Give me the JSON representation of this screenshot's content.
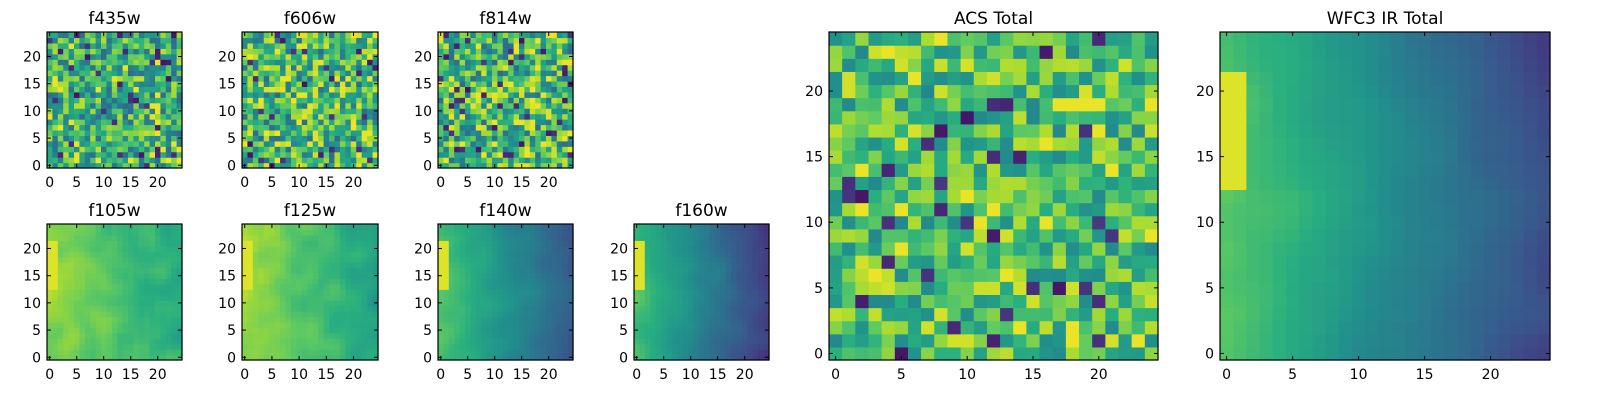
{
  "figure": {
    "background": "#ffffff"
  },
  "colormap": {
    "name": "viridis",
    "stops": [
      "#440154",
      "#472d7b",
      "#3b528b",
      "#2c728e",
      "#21918c",
      "#28ae80",
      "#5ec962",
      "#addc30",
      "#fde725"
    ]
  },
  "chart_data": [
    {
      "type": "heatmap",
      "title": "f435w",
      "grid_size": 25,
      "xticks": [
        0,
        5,
        10,
        15,
        20
      ],
      "yticks": [
        0,
        5,
        10,
        15,
        20
      ],
      "xlim": [
        0,
        24
      ],
      "ylim": [
        0,
        24
      ],
      "pattern": "noise",
      "mean": 0.62,
      "spread": 0.28
    },
    {
      "type": "heatmap",
      "title": "f606w",
      "grid_size": 25,
      "xticks": [
        0,
        5,
        10,
        15,
        20
      ],
      "yticks": [
        0,
        5,
        10,
        15,
        20
      ],
      "xlim": [
        0,
        24
      ],
      "ylim": [
        0,
        24
      ],
      "pattern": "noise",
      "mean": 0.66,
      "spread": 0.32
    },
    {
      "type": "heatmap",
      "title": "f814w",
      "grid_size": 25,
      "xticks": [
        0,
        5,
        10,
        15,
        20
      ],
      "yticks": [
        0,
        5,
        10,
        15,
        20
      ],
      "xlim": [
        0,
        24
      ],
      "ylim": [
        0,
        24
      ],
      "pattern": "noise",
      "mean": 0.66,
      "spread": 0.32
    },
    {
      "type": "heatmap",
      "title": "f105w",
      "grid_size": 25,
      "xticks": [
        0,
        5,
        10,
        15,
        20
      ],
      "yticks": [
        0,
        5,
        10,
        15,
        20
      ],
      "xlim": [
        0,
        24
      ],
      "ylim": [
        0,
        24
      ],
      "pattern": "smooth",
      "mean": 0.72,
      "spread": 0.14,
      "gradient": 0.15
    },
    {
      "type": "heatmap",
      "title": "f125w",
      "grid_size": 25,
      "xticks": [
        0,
        5,
        10,
        15,
        20
      ],
      "yticks": [
        0,
        5,
        10,
        15,
        20
      ],
      "xlim": [
        0,
        24
      ],
      "ylim": [
        0,
        24
      ],
      "pattern": "smooth",
      "mean": 0.72,
      "spread": 0.14,
      "gradient": 0.2
    },
    {
      "type": "heatmap",
      "title": "f140w",
      "grid_size": 25,
      "xticks": [
        0,
        5,
        10,
        15,
        20
      ],
      "yticks": [
        0,
        5,
        10,
        15,
        20
      ],
      "xlim": [
        0,
        24
      ],
      "ylim": [
        0,
        24
      ],
      "pattern": "smooth",
      "mean": 0.52,
      "spread": 0.08,
      "gradient": 0.3
    },
    {
      "type": "heatmap",
      "title": "f160w",
      "grid_size": 25,
      "xticks": [
        0,
        5,
        10,
        15,
        20
      ],
      "yticks": [
        0,
        5,
        10,
        15,
        20
      ],
      "xlim": [
        0,
        24
      ],
      "ylim": [
        0,
        24
      ],
      "pattern": "smooth",
      "mean": 0.46,
      "spread": 0.07,
      "gradient": 0.36
    },
    {
      "type": "heatmap",
      "title": "ACS Total",
      "grid_size": 25,
      "xticks": [
        0,
        5,
        10,
        15,
        20
      ],
      "yticks": [
        0,
        5,
        10,
        15,
        20
      ],
      "xlim": [
        0,
        24
      ],
      "ylim": [
        0,
        24
      ],
      "pattern": "noise",
      "mean": 0.7,
      "spread": 0.24
    },
    {
      "type": "heatmap",
      "title": "WFC3 IR Total",
      "grid_size": 25,
      "xticks": [
        0,
        5,
        10,
        15,
        20
      ],
      "yticks": [
        0,
        5,
        10,
        15,
        20
      ],
      "xlim": [
        0,
        24
      ],
      "ylim": [
        0,
        24
      ],
      "pattern": "smooth",
      "mean": 0.5,
      "spread": 0.06,
      "gradient": 0.36
    }
  ]
}
